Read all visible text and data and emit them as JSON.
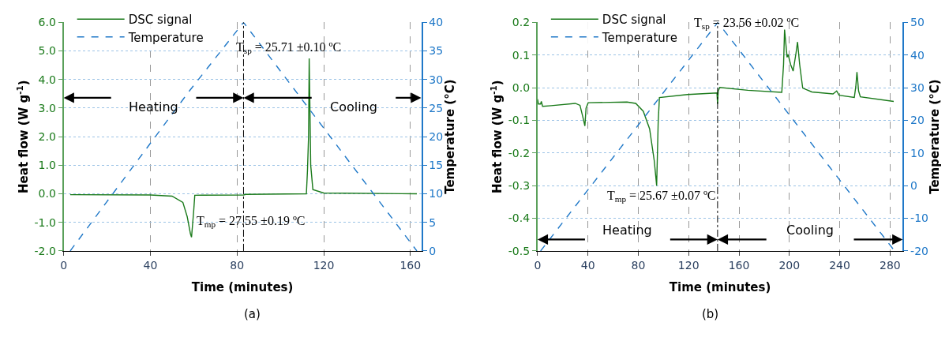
{
  "chart_data": [
    {
      "type": "line",
      "xlabel": "Time (minutes)",
      "ylabel": "Heat flow (W g$^{-1}$)",
      "y2label": "Temperature (°C)",
      "xlim": [
        0,
        165
      ],
      "xticks": [
        0,
        40,
        80,
        120,
        160
      ],
      "ylim": [
        -2,
        6
      ],
      "yticks": [
        {
          "value": -2,
          "label": "-2.0"
        },
        {
          "value": -1,
          "label": "-1.0"
        },
        {
          "value": 0,
          "label": "0.0"
        },
        {
          "value": 1,
          "label": "1.0"
        },
        {
          "value": 2,
          "label": "2.0"
        },
        {
          "value": 3,
          "label": "3.0"
        },
        {
          "value": 4,
          "label": "4.0"
        },
        {
          "value": 5,
          "label": "5.0"
        },
        {
          "value": 6,
          "label": "6.0"
        }
      ],
      "y2lim": [
        0,
        40
      ],
      "y2ticks": [
        0,
        5,
        10,
        15,
        20,
        25,
        30,
        35,
        40
      ],
      "grid": true,
      "legend": "top left",
      "marker": "none",
      "series": [
        {
          "name": "DSC signal",
          "color": "#1a7a1a",
          "line_style": "solid",
          "x": [
            3,
            40,
            50,
            55,
            57,
            58.5,
            59,
            60,
            60.5,
            83,
            84,
            112,
            112.5,
            113,
            113.3,
            113.6,
            114,
            115,
            120,
            163
          ],
          "values": [
            -0.03,
            -0.04,
            -0.08,
            -0.3,
            -0.8,
            -1.4,
            -1.52,
            -0.6,
            -0.05,
            -0.04,
            -0.02,
            0,
            0.8,
            2,
            4.74,
            3.2,
            1,
            0.15,
            0.03,
            0
          ]
        },
        {
          "name": "Temperature",
          "color": "#1f78c8",
          "line_style": "dashed",
          "axis": "y2",
          "x": [
            3,
            58,
            83,
            163
          ],
          "values": [
            0,
            28,
            40,
            0
          ]
        }
      ],
      "ref_lines": [
        {
          "axis": "x",
          "value": 83,
          "label": null,
          "color": "#000000",
          "line_style": "dashdot"
        }
      ],
      "annotations": [
        "Heating",
        "Cooling",
        "T$_{sp}$ = 25.71 ±0.10 ºC",
        "T$_{mp}$ = 27.55 ±0.19 ºC",
        "(a)"
      ]
    },
    {
      "type": "line",
      "xlabel": "Time (minutes)",
      "ylabel": "Heat flow (W g$^{-1}$)",
      "y2label": "Temperature (°C)",
      "xlim": [
        0,
        290
      ],
      "xticks": [
        0,
        40,
        80,
        120,
        160,
        200,
        240,
        280
      ],
      "ylim": [
        -0.5,
        0.2
      ],
      "yticks": [
        -0.5,
        -0.4,
        -0.3,
        -0.2,
        -0.1,
        {
          "value": 0,
          "label": "0.0"
        },
        0.1,
        0.2
      ],
      "y2lim": [
        -20,
        50
      ],
      "y2ticks": [
        -20,
        -10,
        0,
        10,
        20,
        30,
        40,
        50
      ],
      "grid": true,
      "legend": "top left",
      "marker": "none",
      "series": [
        {
          "name": "DSC signal",
          "color": "#1a7a1a",
          "line_style": "solid",
          "x": [
            0,
            0.7,
            2.4,
            3,
            4,
            10.8,
            30,
            33.7,
            36,
            37.6,
            38.5,
            40.2,
            71,
            78,
            84,
            89,
            92.7,
            94.6,
            95.8,
            96.8,
            119,
            142.5,
            143,
            143.5,
            144.7,
            167,
            194,
            195.4,
            196.2,
            198.2,
            199,
            201,
            203,
            205.3,
            206.5,
            208.2,
            210.6,
            217.9,
            234.7,
            237.6,
            239.5,
            251.6,
            252.8,
            253.7,
            255,
            256.4,
            282.9
          ],
          "values": [
            -0.035,
            -0.05,
            -0.05,
            -0.042,
            -0.057,
            -0.055,
            -0.048,
            -0.054,
            -0.09,
            -0.117,
            -0.063,
            -0.046,
            -0.044,
            -0.048,
            -0.072,
            -0.126,
            -0.224,
            -0.3,
            -0.108,
            -0.03,
            -0.021,
            -0.016,
            -0.05,
            -0.01,
            0.001,
            -0.008,
            -0.014,
            0.071,
            0.178,
            0.093,
            0.102,
            0.071,
            0.051,
            0.106,
            0.14,
            0.071,
            -0.001,
            -0.013,
            -0.019,
            -0.01,
            -0.023,
            -0.03,
            0.004,
            0.048,
            -0.01,
            -0.028,
            -0.042
          ]
        },
        {
          "name": "Temperature",
          "color": "#1f78c8",
          "line_style": "dashed",
          "axis": "y2",
          "x": [
            2.4,
            143.2,
            283.6
          ],
          "values": [
            -20,
            50,
            -20
          ]
        }
      ],
      "ref_lines": [
        {
          "axis": "x",
          "value": 143,
          "label": null,
          "color": "#000000",
          "line_style": "dashdot"
        }
      ],
      "annotations": [
        "Heating",
        "Cooling",
        "T$_{sp}$ = 23.56 ±0.02 ºC",
        "T$_{mp}$ = 25.67 ±0.07 ºC",
        "(b)"
      ]
    }
  ]
}
